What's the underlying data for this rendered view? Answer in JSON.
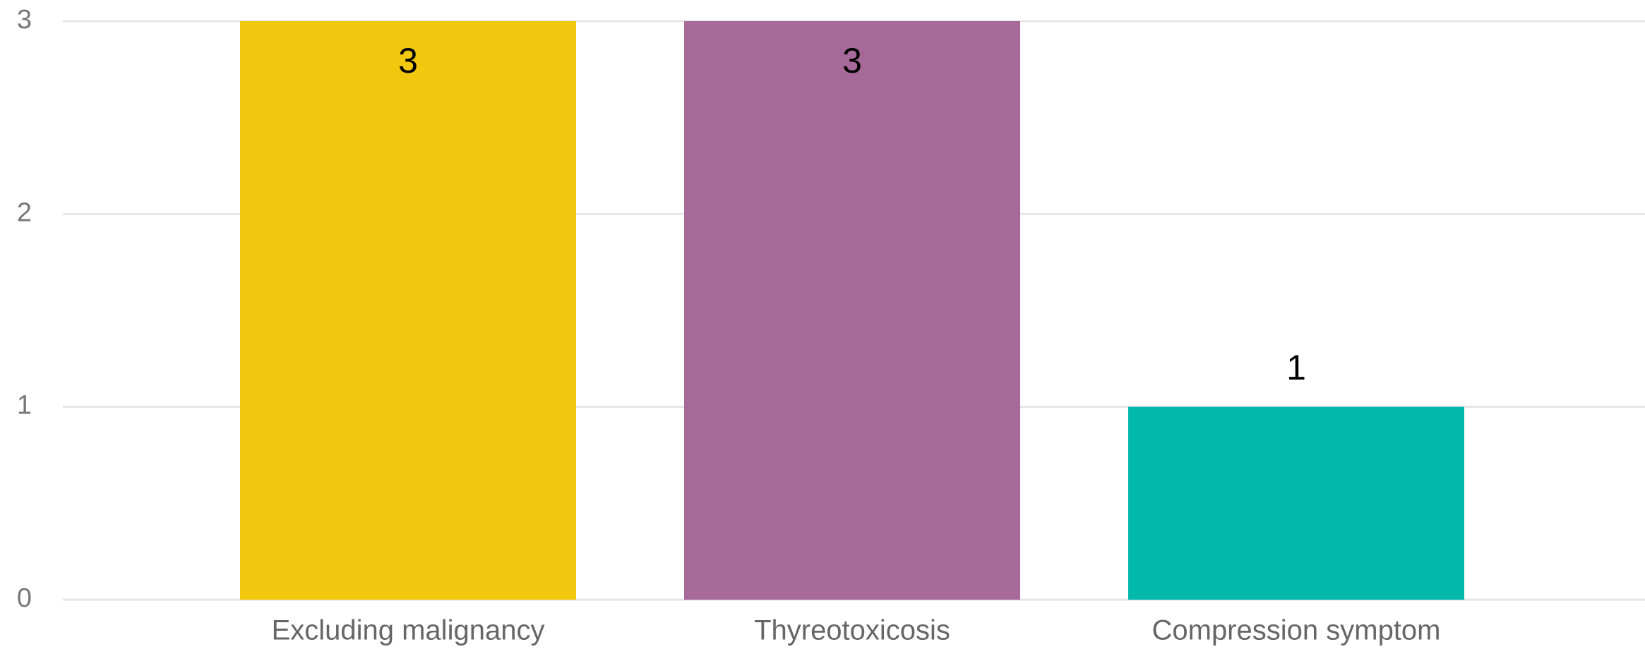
{
  "chart_data": {
    "type": "bar",
    "categories": [
      "Excluding malignancy",
      "Thyreotoxicosis",
      "Compression symptom"
    ],
    "values": [
      3,
      3,
      1
    ],
    "colors": [
      "#F2C80F",
      "#A66999",
      "#01B8AA"
    ],
    "ylim": [
      0,
      3
    ],
    "yticks": [
      0,
      1,
      2,
      3
    ],
    "grid": true
  }
}
